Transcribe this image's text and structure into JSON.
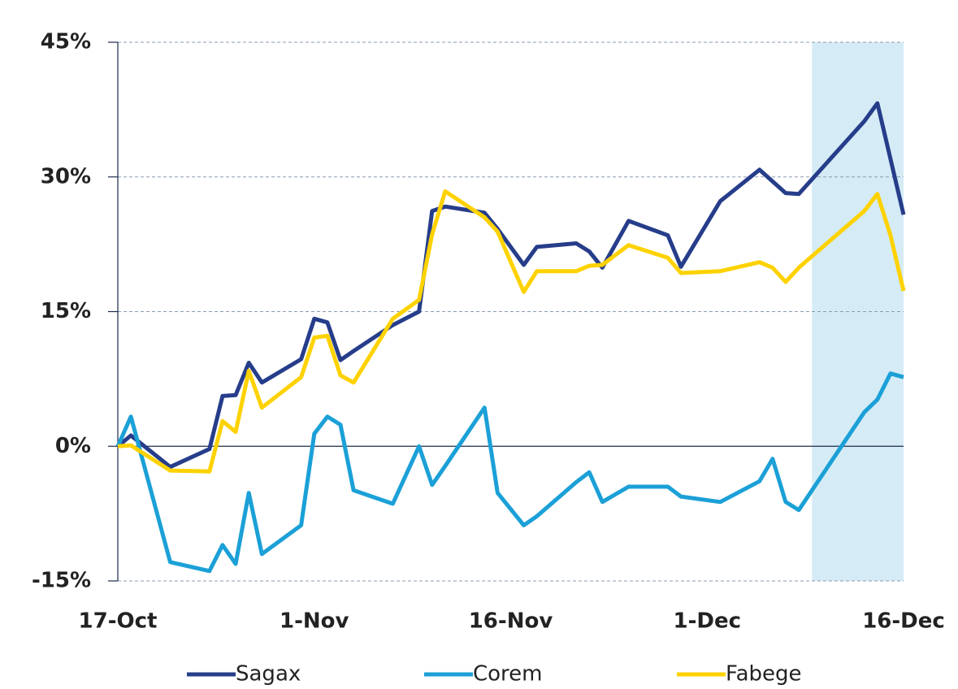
{
  "chart_data": {
    "type": "line",
    "x": [
      "17-Oct",
      "18-Oct",
      "21-Oct",
      "24-Oct",
      "25-Oct",
      "26-Oct",
      "27-Oct",
      "28-Oct",
      "31-Oct",
      "1-Nov",
      "2-Nov",
      "3-Nov",
      "4-Nov",
      "7-Nov",
      "9-Nov",
      "10-Nov",
      "11-Nov",
      "14-Nov",
      "15-Nov",
      "17-Nov",
      "18-Nov",
      "21-Nov",
      "22-Nov",
      "23-Nov",
      "25-Nov",
      "28-Nov",
      "29-Nov",
      "2-Dec",
      "5-Dec",
      "6-Dec",
      "7-Dec",
      "8-Dec",
      "13-Dec",
      "14-Dec",
      "15-Dec",
      "16-Dec"
    ],
    "series": [
      {
        "name": "Sagax",
        "color": "#263d8a",
        "values": [
          0,
          1.2,
          -2.3,
          -0.3,
          5.6,
          5.7,
          9.3,
          7.1,
          9.7,
          14.2,
          13.8,
          9.6,
          10.6,
          13.5,
          15.0,
          26.2,
          26.7,
          26.0,
          24.2,
          20.2,
          22.2,
          22.6,
          21.7,
          19.9,
          25.1,
          23.5,
          20.0,
          27.3,
          30.8,
          29.5,
          28.2,
          28.1,
          36.2,
          38.2,
          32.0,
          25.8
        ]
      },
      {
        "name": "Corem",
        "color": "#1ba0d7",
        "values": [
          0,
          3.3,
          -12.9,
          -13.9,
          -11.0,
          -13.1,
          -5.2,
          -12.0,
          -8.8,
          1.4,
          3.3,
          2.4,
          -4.9,
          -6.4,
          0,
          -4.3,
          -2.2,
          4.3,
          -5.2,
          -8.8,
          -7.8,
          -4.0,
          -2.9,
          -6.2,
          -4.5,
          -4.5,
          -5.6,
          -6.2,
          -3.9,
          -1.4,
          -6.2,
          -7.1,
          3.8,
          5.2,
          8.1,
          7.7
        ]
      },
      {
        "name": "Fabege",
        "color": "#fdd200",
        "values": [
          0,
          0.1,
          -2.7,
          -2.8,
          2.8,
          1.6,
          8.4,
          4.3,
          7.7,
          12.1,
          12.3,
          7.9,
          7.1,
          14.2,
          16.3,
          23.6,
          28.4,
          25.5,
          23.9,
          17.2,
          19.5,
          19.5,
          20.1,
          20.2,
          22.4,
          21.0,
          19.3,
          19.5,
          20.5,
          19.9,
          18.3,
          19.9,
          26.2,
          28.1,
          23.5,
          17.3
        ]
      }
    ],
    "xlim": [
      "17-Oct",
      "16-Dec"
    ],
    "xticks": [
      "17-Oct",
      "1-Nov",
      "16-Nov",
      "1-Dec",
      "16-Dec"
    ],
    "ylim": [
      -15,
      45
    ],
    "yticks": [
      {
        "value": -15,
        "label": "-15%"
      },
      {
        "value": 0,
        "label": "0%"
      },
      {
        "value": 15,
        "label": "15%"
      },
      {
        "value": 30,
        "label": "30%"
      },
      {
        "value": 45,
        "label": "45%"
      }
    ],
    "highlight": [
      "9-Dec",
      "16-Dec"
    ],
    "highlight_color": "#d5ecf6",
    "grid": true,
    "legend": "bottom"
  }
}
